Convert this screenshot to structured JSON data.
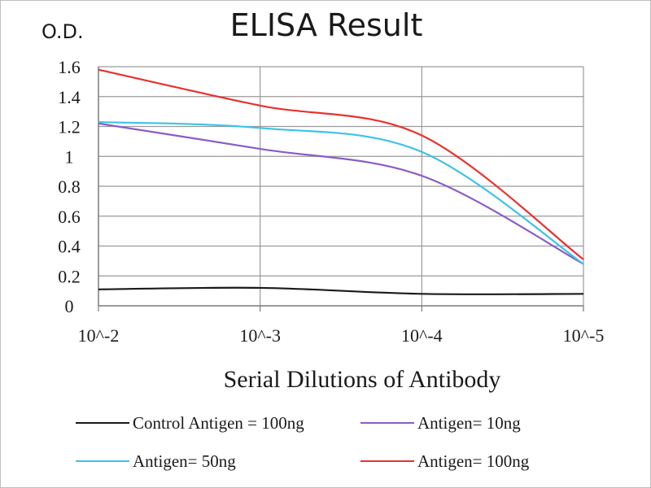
{
  "chart_data": {
    "type": "line",
    "title": "ELISA Result",
    "ylabel": "O.D.",
    "xlabel": "Serial Dilutions  of Antibody",
    "categories": [
      "10^-2",
      "10^-3",
      "10^-4",
      "10^-5"
    ],
    "y_ticks": [
      "0",
      "0.2",
      "0.4",
      "0.6",
      "0.8",
      "1",
      "1.2",
      "1.4",
      "1.6"
    ],
    "ylim": [
      0,
      1.6
    ],
    "grid": true,
    "legend_position": "bottom",
    "series": [
      {
        "name": "Control Antigen = 100ng",
        "color": "#1a1a1a",
        "values": [
          0.11,
          0.12,
          0.08,
          0.08
        ]
      },
      {
        "name": "Antigen= 10ng",
        "color": "#8a5cc8",
        "values": [
          1.22,
          1.05,
          0.87,
          0.28
        ]
      },
      {
        "name": "Antigen= 50ng",
        "color": "#3cc3e6",
        "values": [
          1.23,
          1.19,
          1.03,
          0.28
        ]
      },
      {
        "name": "Antigen= 100ng",
        "color": "#e8322f",
        "values": [
          1.58,
          1.34,
          1.14,
          0.31
        ]
      }
    ]
  }
}
